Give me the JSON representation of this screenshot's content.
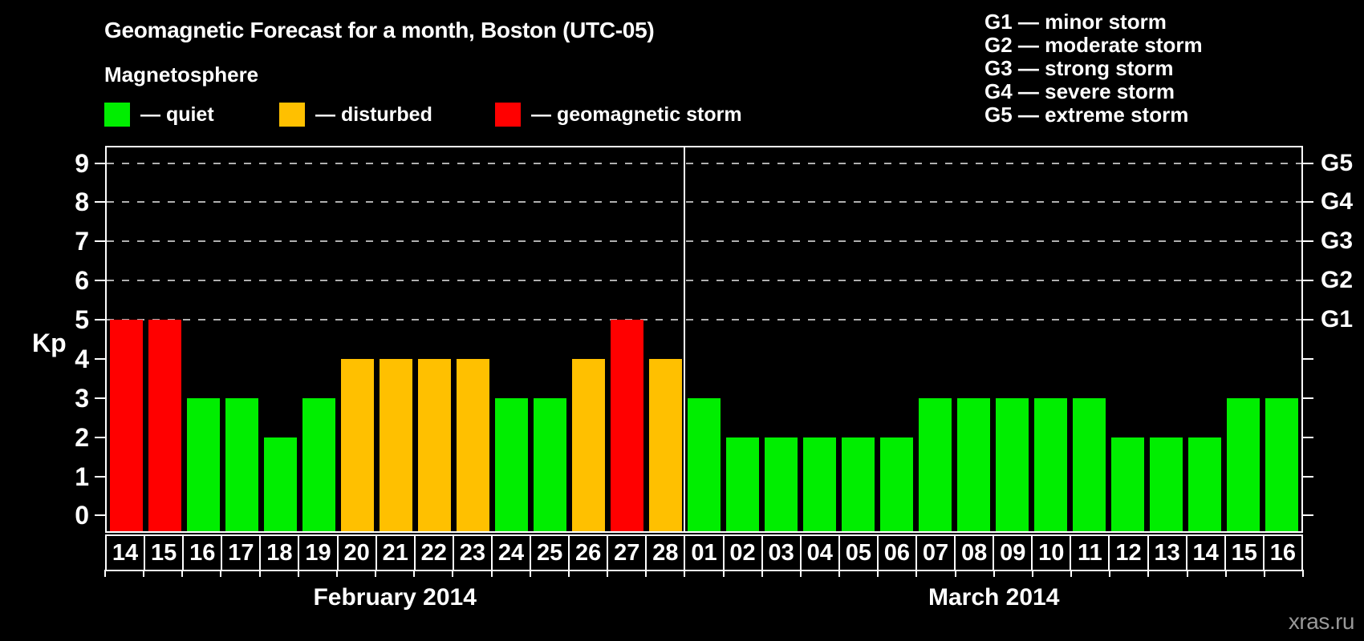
{
  "title": "Geomagnetic Forecast for a month, Boston (UTC-05)",
  "subtitle": "Magnetosphere",
  "magnetosphere_legend": {
    "items": [
      {
        "name": "quiet",
        "label": "— quiet",
        "color": "#00ee00"
      },
      {
        "name": "disturbed",
        "label": "— disturbed",
        "color": "#ffc000"
      },
      {
        "name": "storm",
        "label": "— geomagnetic storm",
        "color": "#ff0000"
      }
    ]
  },
  "g_scale_legend": [
    "G1 — minor storm",
    "G2 — moderate storm",
    "G3 — strong storm",
    "G4 — severe storm",
    "G5 — extreme storm"
  ],
  "watermark": "xras.ru",
  "chart_data": {
    "type": "bar",
    "ylabel_left": "Kp",
    "ylim": [
      -0.4,
      9.4
    ],
    "yticks": [
      0,
      1,
      2,
      3,
      4,
      5,
      6,
      7,
      8,
      9
    ],
    "gridlines_at": [
      5,
      6,
      7,
      8,
      9
    ],
    "grid_style": "dashed",
    "right_axis_labels": [
      {
        "value": 5,
        "label": "G1"
      },
      {
        "value": 6,
        "label": "G2"
      },
      {
        "value": 7,
        "label": "G3"
      },
      {
        "value": 8,
        "label": "G4"
      },
      {
        "value": 9,
        "label": "G5"
      }
    ],
    "color_thresholds": {
      "disturbed_min": 4,
      "storm_min": 5
    },
    "months": [
      {
        "label": "February 2014",
        "days": [
          "14",
          "15",
          "16",
          "17",
          "18",
          "19",
          "20",
          "21",
          "22",
          "23",
          "24",
          "25",
          "26",
          "27",
          "28"
        ],
        "kp": [
          5,
          5,
          3,
          3,
          2,
          3,
          4,
          4,
          4,
          4,
          3,
          3,
          4,
          5,
          4
        ]
      },
      {
        "label": "March 2014",
        "days": [
          "01",
          "02",
          "03",
          "04",
          "05",
          "06",
          "07",
          "08",
          "09",
          "10",
          "11",
          "12",
          "13",
          "14",
          "15",
          "16"
        ],
        "kp": [
          3,
          2,
          2,
          2,
          2,
          2,
          3,
          3,
          3,
          3,
          3,
          2,
          2,
          2,
          3,
          3
        ]
      }
    ]
  }
}
